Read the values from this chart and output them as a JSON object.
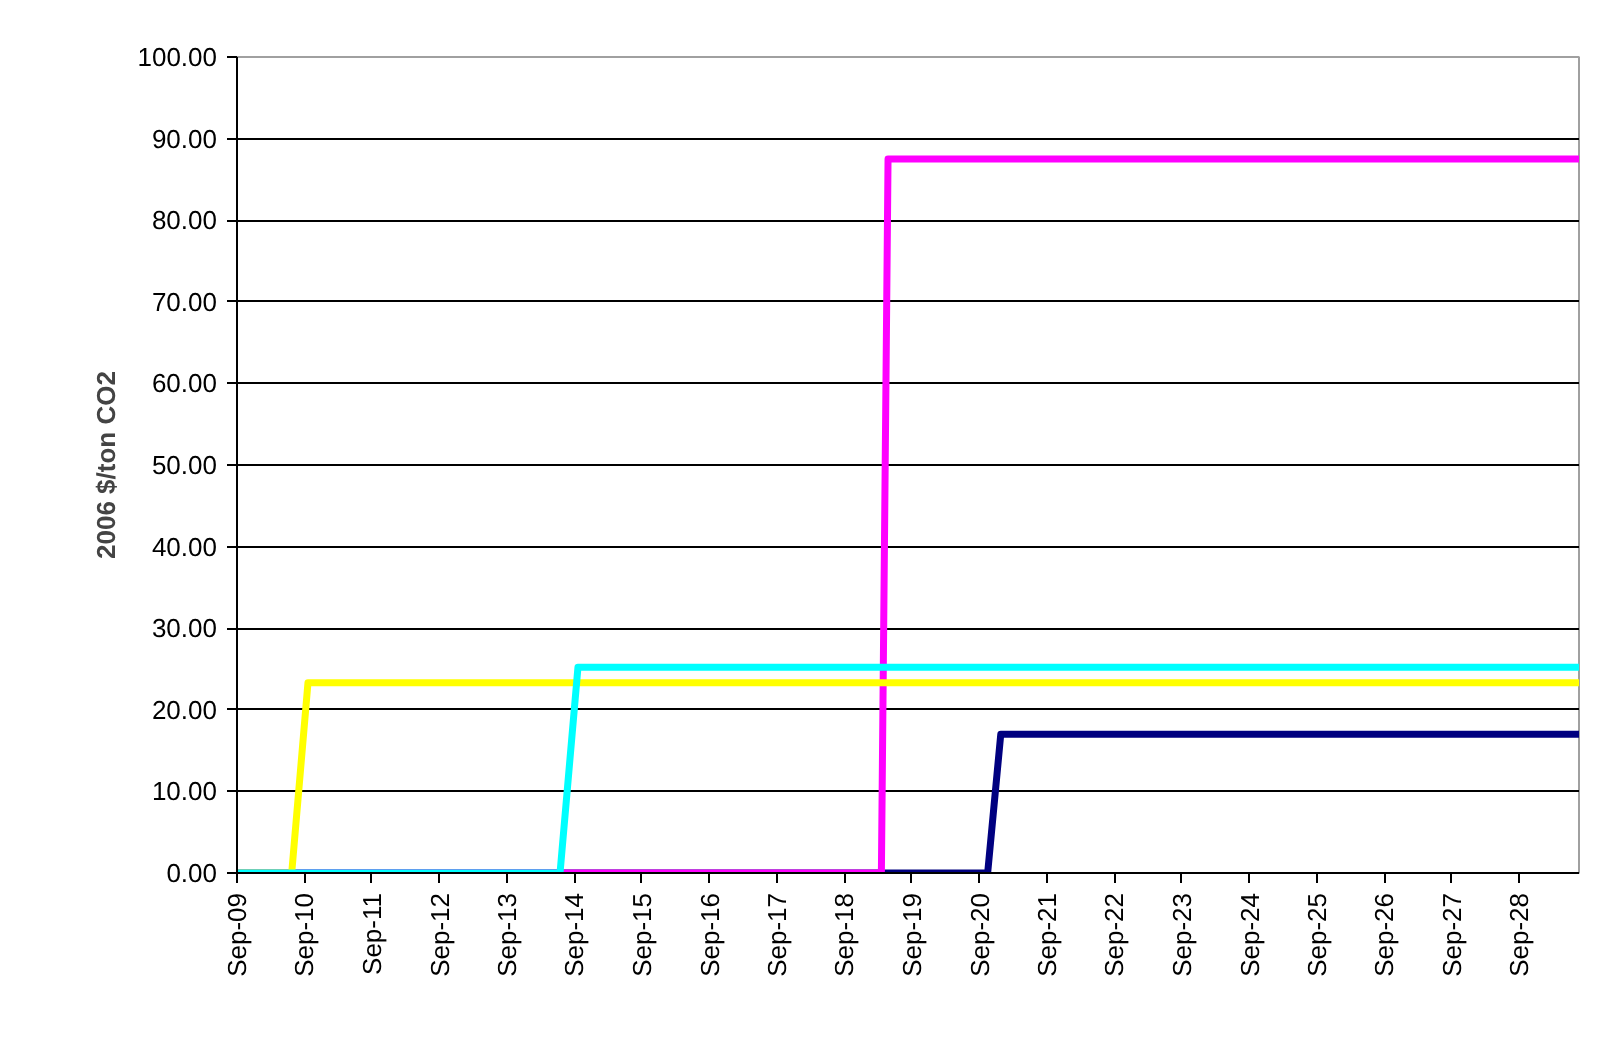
{
  "chart_data": {
    "type": "line",
    "ylabel": "2006 $/ton CO2",
    "xlim": [
      "2009-09-01",
      "2029-07-20"
    ],
    "xticks": [
      {
        "value": "2009-09-01",
        "label": "Sep-09"
      },
      {
        "value": "2010-09-01",
        "label": "Sep-10"
      },
      {
        "value": "2011-09-01",
        "label": "Sep-11"
      },
      {
        "value": "2012-09-01",
        "label": "Sep-12"
      },
      {
        "value": "2013-09-01",
        "label": "Sep-13"
      },
      {
        "value": "2014-09-01",
        "label": "Sep-14"
      },
      {
        "value": "2015-09-01",
        "label": "Sep-15"
      },
      {
        "value": "2016-09-01",
        "label": "Sep-16"
      },
      {
        "value": "2017-09-01",
        "label": "Sep-17"
      },
      {
        "value": "2018-09-01",
        "label": "Sep-18"
      },
      {
        "value": "2019-09-01",
        "label": "Sep-19"
      },
      {
        "value": "2020-09-01",
        "label": "Sep-20"
      },
      {
        "value": "2021-09-01",
        "label": "Sep-21"
      },
      {
        "value": "2022-09-01",
        "label": "Sep-22"
      },
      {
        "value": "2023-09-01",
        "label": "Sep-23"
      },
      {
        "value": "2024-09-01",
        "label": "Sep-24"
      },
      {
        "value": "2025-09-01",
        "label": "Sep-25"
      },
      {
        "value": "2026-09-01",
        "label": "Sep-26"
      },
      {
        "value": "2027-09-01",
        "label": "Sep-27"
      },
      {
        "value": "2028-09-01",
        "label": "Sep-28"
      }
    ],
    "ylim": [
      0,
      100
    ],
    "yticks": [
      {
        "value": 0,
        "label": "0.00"
      },
      {
        "value": 10,
        "label": "10.00"
      },
      {
        "value": 20,
        "label": "20.00"
      },
      {
        "value": 30,
        "label": "30.00"
      },
      {
        "value": 40,
        "label": "40.00"
      },
      {
        "value": 50,
        "label": "50.00"
      },
      {
        "value": 60,
        "label": "60.00"
      },
      {
        "value": 70,
        "label": "70.00"
      },
      {
        "value": 80,
        "label": "80.00"
      },
      {
        "value": 90,
        "label": "90.00"
      },
      {
        "value": 100,
        "label": "100.00"
      }
    ],
    "grid": "y",
    "marker": "none",
    "line_style": "solid",
    "series": [
      {
        "color": "#000080",
        "x": [
          "2009-09-01",
          "2020-10-15",
          "2020-12-25",
          "2029-07-20"
        ],
        "values": [
          0,
          0,
          17.0,
          17.0
        ]
      },
      {
        "color": "#ff00ff",
        "x": [
          "2009-09-01",
          "2019-03-20",
          "2019-04-25",
          "2029-07-20"
        ],
        "values": [
          0,
          0,
          87.5,
          87.5
        ]
      },
      {
        "color": "#ffff00",
        "x": [
          "2009-09-01",
          "2010-06-24",
          "2010-09-20",
          "2029-07-20"
        ],
        "values": [
          0,
          0,
          23.3,
          23.3
        ]
      },
      {
        "color": "#00ffff",
        "x": [
          "2009-09-01",
          "2014-06-15",
          "2014-09-20",
          "2029-07-20"
        ],
        "values": [
          0,
          0,
          25.2,
          25.2
        ]
      }
    ]
  }
}
